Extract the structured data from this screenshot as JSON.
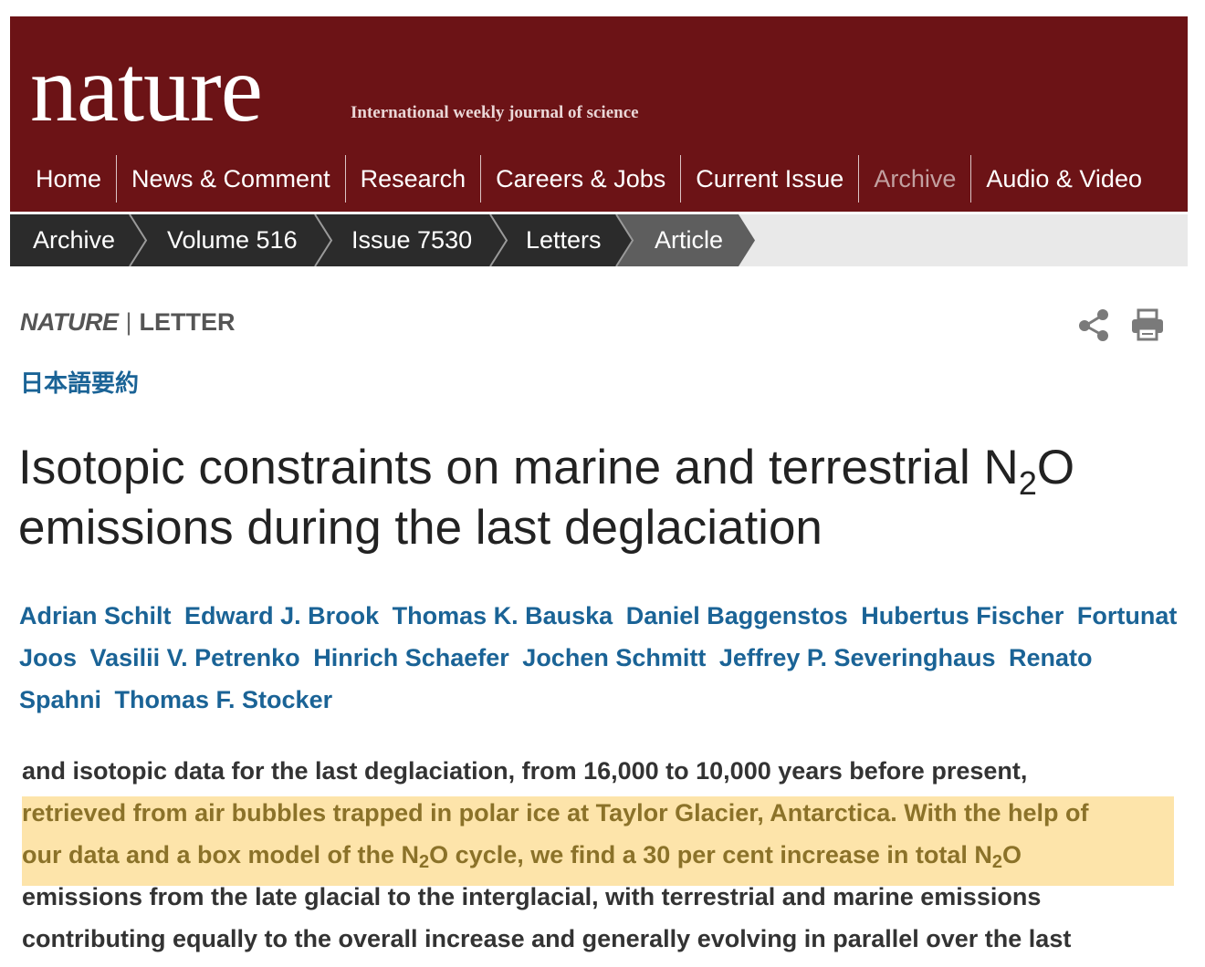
{
  "masthead": {
    "logo_text": "nature",
    "tagline": "International weekly journal of science",
    "nav": [
      {
        "label": "Home",
        "active": false
      },
      {
        "label": "News & Comment",
        "active": false
      },
      {
        "label": "Research",
        "active": false
      },
      {
        "label": "Careers & Jobs",
        "active": false
      },
      {
        "label": "Current Issue",
        "active": false
      },
      {
        "label": "Archive",
        "active": true
      },
      {
        "label": "Audio & Video",
        "active": false
      }
    ]
  },
  "breadcrumb": [
    {
      "label": "Archive"
    },
    {
      "label": "Volume 516"
    },
    {
      "label": "Issue 7530"
    },
    {
      "label": "Letters"
    },
    {
      "label": "Article",
      "current": true
    }
  ],
  "article_header": {
    "journal": "NATURE",
    "separator": "|",
    "type": "LETTER",
    "share_icon": "share-icon",
    "print_icon": "print-icon"
  },
  "japanese_summary": "日本語要約",
  "title": {
    "part1": "Isotopic constraints on marine and terrestrial N",
    "sub": "2",
    "part2": "O emissions during the last deglaciation"
  },
  "authors": [
    "Adrian Schilt",
    "Edward J. Brook",
    "Thomas K. Bauska",
    "Daniel Baggenstos",
    "Hubertus Fischer",
    "Fortunat Joos",
    "Vasilii V. Petrenko",
    "Hinrich Schaefer",
    "Jochen Schmitt",
    "Jeffrey P. Severinghaus",
    "Renato Spahni",
    "Thomas F. Stocker"
  ],
  "abstract": {
    "line1": "and isotopic data for the last deglaciation, from 16,000 to 10,000 years before present,",
    "line2": "retrieved from air bubbles trapped in polar ice at Taylor Glacier, Antarctica. With the help of",
    "line3_a": "our data and a box model of the N",
    "line3_sub1": "2",
    "line3_b": "O cycle, we find a 30 per cent increase in total N",
    "line3_sub2": "2",
    "line3_c": "O",
    "line4": "emissions from the late glacial to the interglacial, with terrestrial and marine emissions",
    "line5": "contributing equally to the overall increase and generally evolving in parallel over the last"
  },
  "colors": {
    "masthead_bg": "#6c1316",
    "breadcrumb_dark": "#2b2b2b",
    "breadcrumb_current": "#5e5e5e",
    "link_blue": "#1a6396",
    "highlight": "#fde3a5"
  }
}
